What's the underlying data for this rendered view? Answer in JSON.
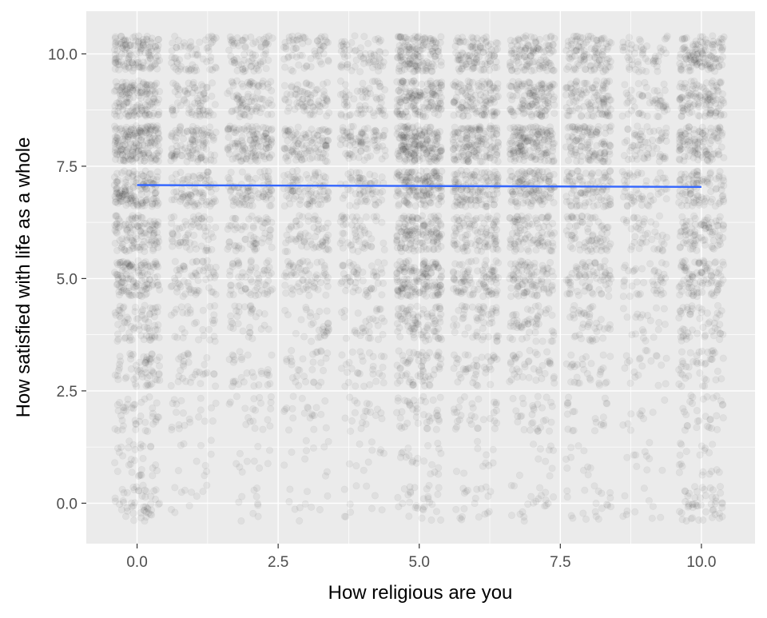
{
  "chart_data": {
    "type": "scatter",
    "title": "",
    "xlabel": "How religious are you",
    "ylabel": "How satisfied with life as a whole",
    "xlim": [
      -0.9,
      10.95
    ],
    "ylim": [
      -0.9,
      10.95
    ],
    "x_ticks": [
      {
        "value": 0,
        "label": "0.0"
      },
      {
        "value": 2.5,
        "label": "2.5"
      },
      {
        "value": 5,
        "label": "5.0"
      },
      {
        "value": 7.5,
        "label": "7.5"
      },
      {
        "value": 10,
        "label": "10.0"
      }
    ],
    "y_ticks": [
      {
        "value": 0,
        "label": "0.0"
      },
      {
        "value": 2.5,
        "label": "2.5"
      },
      {
        "value": 5,
        "label": "5.0"
      },
      {
        "value": 7.5,
        "label": "7.5"
      },
      {
        "value": 10,
        "label": "10.0"
      }
    ],
    "grid": true,
    "points": {
      "style": "jittered semi-transparent grey circles",
      "x_values": [
        0,
        1,
        2,
        3,
        4,
        5,
        6,
        7,
        8,
        9,
        10
      ],
      "y_values": [
        0,
        1,
        2,
        3,
        4,
        5,
        6,
        7,
        8,
        9,
        10
      ],
      "jitter": 0.4,
      "density": [
        [
          5,
          1,
          1,
          1,
          1,
          3,
          2,
          2,
          2,
          1,
          5
        ],
        [
          3,
          1,
          1,
          1,
          1,
          2,
          1,
          1,
          1,
          1,
          2
        ],
        [
          4,
          2,
          2,
          2,
          2,
          4,
          3,
          3,
          2,
          1,
          3
        ],
        [
          6,
          3,
          3,
          3,
          3,
          6,
          4,
          4,
          3,
          2,
          4
        ],
        [
          7,
          3,
          3,
          3,
          3,
          8,
          5,
          5,
          4,
          2,
          5
        ],
        [
          12,
          6,
          6,
          6,
          5,
          14,
          9,
          9,
          7,
          4,
          9
        ],
        [
          11,
          6,
          6,
          6,
          5,
          13,
          9,
          9,
          7,
          4,
          8
        ],
        [
          14,
          8,
          8,
          8,
          6,
          15,
          12,
          12,
          9,
          5,
          9
        ],
        [
          18,
          10,
          12,
          10,
          8,
          18,
          14,
          15,
          11,
          6,
          11
        ],
        [
          14,
          7,
          8,
          7,
          6,
          14,
          11,
          12,
          10,
          5,
          11
        ],
        [
          13,
          6,
          7,
          6,
          6,
          14,
          10,
          11,
          10,
          5,
          12
        ]
      ],
      "color": "#000000",
      "alpha": 0.05
    },
    "trend_line": {
      "color": "#3366ff",
      "x": [
        0,
        10
      ],
      "y": [
        7.08,
        7.04
      ]
    },
    "colors": {
      "panel": "#ebebeb",
      "grid_major": "#ffffff",
      "tick_text": "#4d4d4d",
      "axis_title": "#000000"
    }
  }
}
